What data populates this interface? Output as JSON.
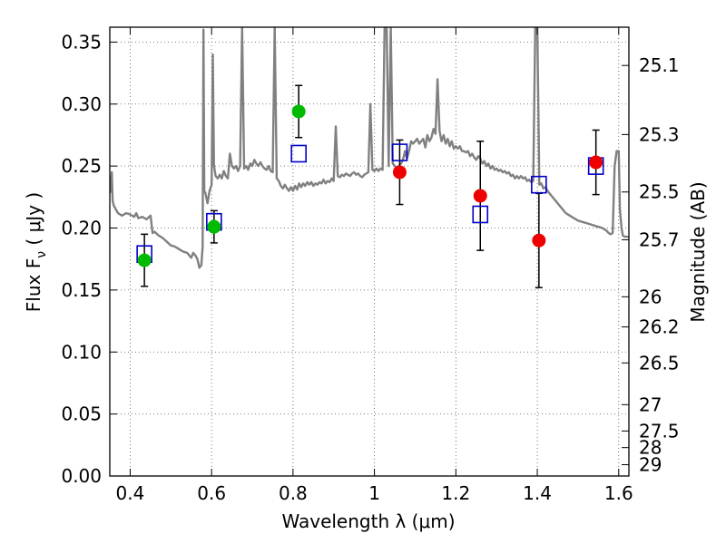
{
  "chart_data": {
    "type": "scatter",
    "xlabel": "Wavelength  λ (μm)",
    "ylabel": "Flux  F",
    "ylabel_sub": "ν",
    "ylabel_unit": "  ( μJy )",
    "y2label": "Magnitude (AB)",
    "xlim": [
      0.35,
      1.625
    ],
    "ylim": [
      0.0,
      0.362
    ],
    "grid": true,
    "x_ticks": [
      {
        "value": 0.4,
        "label": "0.4"
      },
      {
        "value": 0.6,
        "label": "0.6"
      },
      {
        "value": 0.8,
        "label": "0.8"
      },
      {
        "value": 1.0,
        "label": "1"
      },
      {
        "value": 1.2,
        "label": "1.2"
      },
      {
        "value": 1.4,
        "label": "1.4"
      },
      {
        "value": 1.6,
        "label": "1.6"
      }
    ],
    "y_ticks": [
      {
        "value": 0.0,
        "label": "0.00"
      },
      {
        "value": 0.05,
        "label": "0.05"
      },
      {
        "value": 0.1,
        "label": "0.10"
      },
      {
        "value": 0.15,
        "label": "0.15"
      },
      {
        "value": 0.2,
        "label": "0.20"
      },
      {
        "value": 0.25,
        "label": "0.25"
      },
      {
        "value": 0.3,
        "label": "0.30"
      },
      {
        "value": 0.35,
        "label": "0.35"
      }
    ],
    "y2_ticks": [
      {
        "mag": 25.1,
        "label": "25.1"
      },
      {
        "mag": 25.3,
        "label": "25.3"
      },
      {
        "mag": 25.5,
        "label": "25.5"
      },
      {
        "mag": 25.7,
        "label": "25.7"
      },
      {
        "mag": 26,
        "label": "26"
      },
      {
        "mag": 26.2,
        "label": "26.2"
      },
      {
        "mag": 26.5,
        "label": "26.5"
      },
      {
        "mag": 27,
        "label": "27"
      },
      {
        "mag": 27.5,
        "label": "27.5"
      },
      {
        "mag": 28,
        "label": "28"
      },
      {
        "mag": 29,
        "label": "29"
      }
    ],
    "colors": {
      "model": "#808080",
      "green": "#00bb00",
      "red": "#ee0000",
      "square": "#0000cc",
      "errorbar": "#000000",
      "grid": "#555555"
    },
    "series": [
      {
        "kind": "model-spectrum",
        "points": [
          [
            0.35,
            0.228
          ],
          [
            0.352,
            0.232
          ],
          [
            0.355,
            0.245
          ],
          [
            0.357,
            0.222
          ],
          [
            0.36,
            0.218
          ],
          [
            0.365,
            0.215
          ],
          [
            0.37,
            0.212
          ],
          [
            0.38,
            0.21
          ],
          [
            0.39,
            0.212
          ],
          [
            0.4,
            0.211
          ],
          [
            0.41,
            0.209
          ],
          [
            0.415,
            0.212
          ],
          [
            0.42,
            0.208
          ],
          [
            0.43,
            0.209
          ],
          [
            0.44,
            0.207
          ],
          [
            0.45,
            0.21
          ],
          [
            0.455,
            0.196
          ],
          [
            0.46,
            0.197
          ],
          [
            0.47,
            0.194
          ],
          [
            0.48,
            0.192
          ],
          [
            0.49,
            0.189
          ],
          [
            0.5,
            0.186
          ],
          [
            0.51,
            0.185
          ],
          [
            0.52,
            0.183
          ],
          [
            0.53,
            0.181
          ],
          [
            0.54,
            0.18
          ],
          [
            0.545,
            0.178
          ],
          [
            0.55,
            0.176
          ],
          [
            0.555,
            0.18
          ],
          [
            0.56,
            0.178
          ],
          [
            0.565,
            0.175
          ],
          [
            0.57,
            0.168
          ],
          [
            0.575,
            0.17
          ],
          [
            0.578,
            0.185
          ],
          [
            0.58,
            0.36
          ],
          [
            0.582,
            0.23
          ],
          [
            0.585,
            0.228
          ],
          [
            0.59,
            0.22
          ],
          [
            0.595,
            0.23
          ],
          [
            0.6,
            0.235
          ],
          [
            0.603,
            0.34
          ],
          [
            0.606,
            0.25
          ],
          [
            0.61,
            0.242
          ],
          [
            0.615,
            0.24
          ],
          [
            0.62,
            0.243
          ],
          [
            0.625,
            0.24
          ],
          [
            0.63,
            0.246
          ],
          [
            0.635,
            0.242
          ],
          [
            0.64,
            0.24
          ],
          [
            0.645,
            0.26
          ],
          [
            0.65,
            0.25
          ],
          [
            0.655,
            0.248
          ],
          [
            0.66,
            0.25
          ],
          [
            0.665,
            0.246
          ],
          [
            0.67,
            0.25
          ],
          [
            0.675,
            0.362
          ],
          [
            0.68,
            0.248
          ],
          [
            0.685,
            0.25
          ],
          [
            0.69,
            0.247
          ],
          [
            0.695,
            0.252
          ],
          [
            0.7,
            0.25
          ],
          [
            0.705,
            0.255
          ],
          [
            0.71,
            0.252
          ],
          [
            0.715,
            0.25
          ],
          [
            0.72,
            0.253
          ],
          [
            0.725,
            0.25
          ],
          [
            0.73,
            0.248
          ],
          [
            0.735,
            0.247
          ],
          [
            0.74,
            0.25
          ],
          [
            0.745,
            0.246
          ],
          [
            0.75,
            0.245
          ],
          [
            0.755,
            0.362
          ],
          [
            0.76,
            0.24
          ],
          [
            0.765,
            0.238
          ],
          [
            0.77,
            0.234
          ],
          [
            0.775,
            0.232
          ],
          [
            0.78,
            0.235
          ],
          [
            0.785,
            0.232
          ],
          [
            0.79,
            0.23
          ],
          [
            0.795,
            0.233
          ],
          [
            0.8,
            0.23
          ],
          [
            0.805,
            0.234
          ],
          [
            0.81,
            0.231
          ],
          [
            0.815,
            0.236
          ],
          [
            0.82,
            0.233
          ],
          [
            0.825,
            0.236
          ],
          [
            0.83,
            0.234
          ],
          [
            0.835,
            0.237
          ],
          [
            0.84,
            0.235
          ],
          [
            0.845,
            0.237
          ],
          [
            0.85,
            0.234
          ],
          [
            0.855,
            0.236
          ],
          [
            0.86,
            0.235
          ],
          [
            0.865,
            0.237
          ],
          [
            0.87,
            0.236
          ],
          [
            0.875,
            0.239
          ],
          [
            0.88,
            0.236
          ],
          [
            0.885,
            0.238
          ],
          [
            0.89,
            0.237
          ],
          [
            0.895,
            0.24
          ],
          [
            0.9,
            0.238
          ],
          [
            0.905,
            0.282
          ],
          [
            0.91,
            0.242
          ],
          [
            0.915,
            0.241
          ],
          [
            0.92,
            0.243
          ],
          [
            0.925,
            0.242
          ],
          [
            0.93,
            0.244
          ],
          [
            0.935,
            0.243
          ],
          [
            0.94,
            0.242
          ],
          [
            0.945,
            0.244
          ],
          [
            0.95,
            0.245
          ],
          [
            0.955,
            0.243
          ],
          [
            0.96,
            0.244
          ],
          [
            0.965,
            0.242
          ],
          [
            0.97,
            0.241
          ],
          [
            0.975,
            0.243
          ],
          [
            0.98,
            0.244
          ],
          [
            0.985,
            0.245
          ],
          [
            0.99,
            0.3
          ],
          [
            0.995,
            0.247
          ],
          [
            1.0,
            0.246
          ],
          [
            1.005,
            0.248
          ],
          [
            1.01,
            0.246
          ],
          [
            1.015,
            0.248
          ],
          [
            1.02,
            0.247
          ],
          [
            1.025,
            0.362
          ],
          [
            1.03,
            0.362
          ],
          [
            1.035,
            0.25
          ],
          [
            1.04,
            0.362
          ],
          [
            1.045,
            0.252
          ],
          [
            1.05,
            0.25
          ],
          [
            1.055,
            0.248
          ],
          [
            1.06,
            0.25
          ],
          [
            1.065,
            0.252
          ],
          [
            1.07,
            0.255
          ],
          [
            1.075,
            0.262
          ],
          [
            1.08,
            0.256
          ],
          [
            1.085,
            0.262
          ],
          [
            1.09,
            0.27
          ],
          [
            1.095,
            0.268
          ],
          [
            1.1,
            0.27
          ],
          [
            1.105,
            0.272
          ],
          [
            1.11,
            0.268
          ],
          [
            1.115,
            0.27
          ],
          [
            1.12,
            0.272
          ],
          [
            1.125,
            0.265
          ],
          [
            1.13,
            0.275
          ],
          [
            1.135,
            0.27
          ],
          [
            1.14,
            0.273
          ],
          [
            1.145,
            0.28
          ],
          [
            1.15,
            0.276
          ],
          [
            1.155,
            0.32
          ],
          [
            1.16,
            0.278
          ],
          [
            1.165,
            0.27
          ],
          [
            1.17,
            0.275
          ],
          [
            1.175,
            0.268
          ],
          [
            1.18,
            0.272
          ],
          [
            1.185,
            0.266
          ],
          [
            1.19,
            0.27
          ],
          [
            1.195,
            0.264
          ],
          [
            1.2,
            0.266
          ],
          [
            1.205,
            0.264
          ],
          [
            1.21,
            0.266
          ],
          [
            1.215,
            0.262
          ],
          [
            1.22,
            0.262
          ],
          [
            1.225,
            0.261
          ],
          [
            1.23,
            0.262
          ],
          [
            1.235,
            0.258
          ],
          [
            1.24,
            0.26
          ],
          [
            1.245,
            0.257
          ],
          [
            1.25,
            0.255
          ],
          [
            1.255,
            0.258
          ],
          [
            1.26,
            0.256
          ],
          [
            1.265,
            0.252
          ],
          [
            1.27,
            0.254
          ],
          [
            1.275,
            0.25
          ],
          [
            1.28,
            0.252
          ],
          [
            1.285,
            0.248
          ],
          [
            1.29,
            0.25
          ],
          [
            1.295,
            0.247
          ],
          [
            1.3,
            0.248
          ],
          [
            1.305,
            0.246
          ],
          [
            1.31,
            0.247
          ],
          [
            1.315,
            0.245
          ],
          [
            1.32,
            0.246
          ],
          [
            1.325,
            0.244
          ],
          [
            1.33,
            0.245
          ],
          [
            1.335,
            0.242
          ],
          [
            1.34,
            0.243
          ],
          [
            1.345,
            0.24
          ],
          [
            1.35,
            0.242
          ],
          [
            1.355,
            0.24
          ],
          [
            1.36,
            0.242
          ],
          [
            1.365,
            0.24
          ],
          [
            1.37,
            0.241
          ],
          [
            1.375,
            0.238
          ],
          [
            1.38,
            0.239
          ],
          [
            1.385,
            0.237
          ],
          [
            1.39,
            0.238
          ],
          [
            1.395,
            0.362
          ],
          [
            1.4,
            0.362
          ],
          [
            1.405,
            0.235
          ],
          [
            1.41,
            0.236
          ],
          [
            1.415,
            0.232
          ],
          [
            1.42,
            0.233
          ],
          [
            1.425,
            0.23
          ],
          [
            1.43,
            0.228
          ],
          [
            1.435,
            0.226
          ],
          [
            1.44,
            0.224
          ],
          [
            1.445,
            0.222
          ],
          [
            1.45,
            0.22
          ],
          [
            1.455,
            0.218
          ],
          [
            1.46,
            0.216
          ],
          [
            1.465,
            0.214
          ],
          [
            1.47,
            0.212
          ],
          [
            1.48,
            0.21
          ],
          [
            1.49,
            0.208
          ],
          [
            1.5,
            0.206
          ],
          [
            1.51,
            0.205
          ],
          [
            1.52,
            0.204
          ],
          [
            1.53,
            0.203
          ],
          [
            1.54,
            0.202
          ],
          [
            1.55,
            0.201
          ],
          [
            1.56,
            0.2
          ],
          [
            1.57,
            0.198
          ],
          [
            1.575,
            0.196
          ],
          [
            1.58,
            0.195
          ],
          [
            1.585,
            0.196
          ],
          [
            1.59,
            0.25
          ],
          [
            1.595,
            0.262
          ],
          [
            1.6,
            0.262
          ],
          [
            1.603,
            0.215
          ],
          [
            1.607,
            0.2
          ],
          [
            1.61,
            0.194
          ],
          [
            1.615,
            0.193
          ],
          [
            1.62,
            0.193
          ],
          [
            1.625,
            0.193
          ]
        ]
      },
      {
        "kind": "model-photometry",
        "marker": "open-square",
        "x": [
          0.435,
          0.606,
          0.814,
          1.062,
          1.26,
          1.404,
          1.544
        ],
        "y": [
          0.179,
          0.205,
          0.26,
          0.261,
          0.211,
          0.235,
          0.25
        ]
      },
      {
        "kind": "observed-optical",
        "marker": "filled-circle",
        "x": [
          0.435,
          0.606,
          0.814
        ],
        "y": [
          0.174,
          0.201,
          0.294
        ],
        "yerr": [
          0.021,
          0.013,
          0.021
        ]
      },
      {
        "kind": "observed-nir",
        "marker": "filled-circle",
        "x": [
          1.062,
          1.26,
          1.404,
          1.544
        ],
        "y": [
          0.245,
          0.226,
          0.19,
          0.253
        ],
        "yerr": [
          0.026,
          0.044,
          0.038,
          0.026
        ]
      }
    ]
  }
}
